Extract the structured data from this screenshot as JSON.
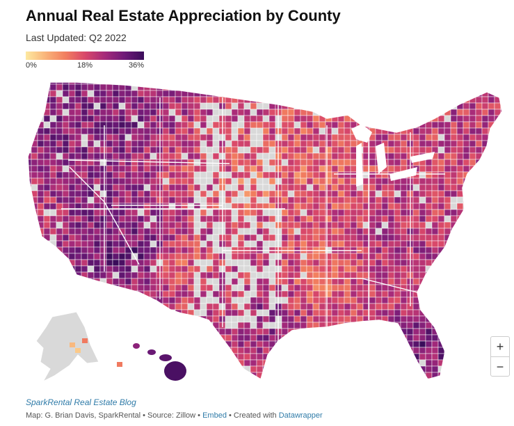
{
  "header": {
    "title": "Annual Real Estate Appreciation by County",
    "subtitle": "Last Updated: Q2 2022"
  },
  "legend": {
    "min_label": "0%",
    "mid_label": "18%",
    "max_label": "36%",
    "color_stops": [
      "#fde9a0",
      "#f9b47a",
      "#f27f5f",
      "#d9486a",
      "#a62a7a",
      "#6f1a78",
      "#3a0c5a"
    ]
  },
  "map": {
    "no_data_color": "#d9d9d9",
    "border_color": "#ffffff",
    "regions": [
      {
        "name": "Pacific Northwest",
        "level": 0.78
      },
      {
        "name": "California",
        "level": 0.6
      },
      {
        "name": "Nevada",
        "level": 0.82
      },
      {
        "name": "Arizona",
        "level": 0.95
      },
      {
        "name": "Utah",
        "level": 0.7
      },
      {
        "name": "Idaho/Montana",
        "level": 0.8
      },
      {
        "name": "Wyoming/Colorado",
        "level": 0.5
      },
      {
        "name": "New Mexico",
        "level": 0.45
      },
      {
        "name": "Great Plains",
        "level": 0.35
      },
      {
        "name": "Texas",
        "level": 0.5
      },
      {
        "name": "Central Texas",
        "level": 0.85
      },
      {
        "name": "Midwest",
        "level": 0.4
      },
      {
        "name": "South",
        "level": 0.35
      },
      {
        "name": "Tennessee/Carolinas",
        "level": 0.7
      },
      {
        "name": "Georgia",
        "level": 0.5
      },
      {
        "name": "Florida",
        "level": 0.88
      },
      {
        "name": "Northeast",
        "level": 0.55
      },
      {
        "name": "Maine",
        "level": 0.6
      },
      {
        "name": "Hawaii",
        "level": 0.9
      },
      {
        "name": "Alaska",
        "level": 0.2
      }
    ]
  },
  "controls": {
    "zoom_in": "+",
    "zoom_out": "−"
  },
  "footer": {
    "blog": "SparkRental Real Estate Blog",
    "credits_prefix": "Map: G. Brian Davis, SparkRental • Source: Zillow • ",
    "embed": "Embed",
    "created_with": " • Created with ",
    "datawrapper": "Datawrapper"
  }
}
